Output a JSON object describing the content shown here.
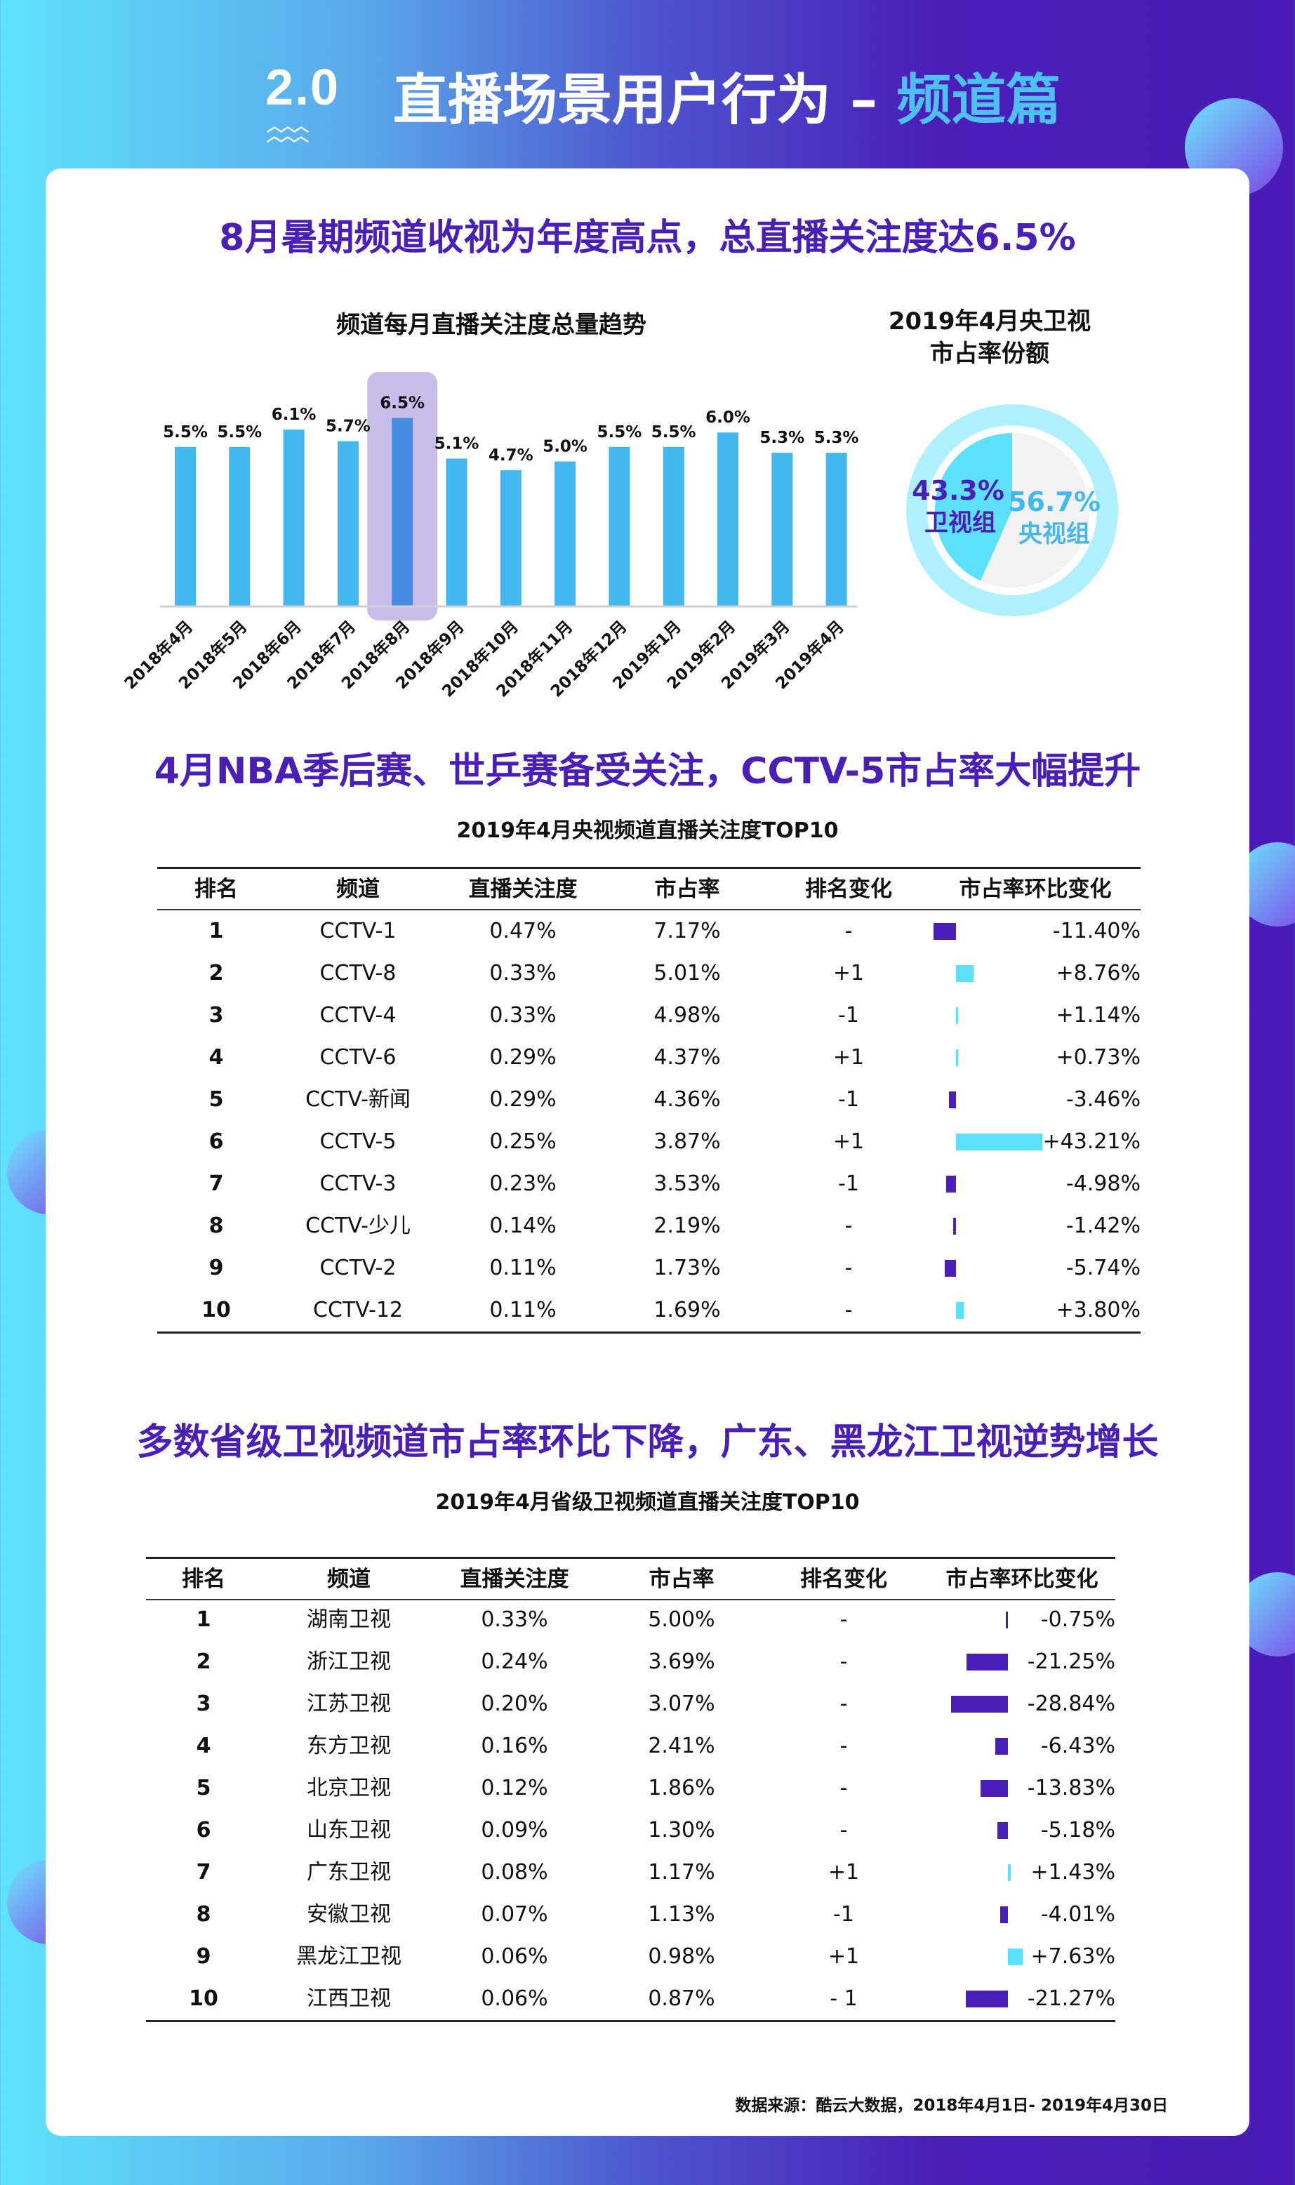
{
  "header": {
    "logo_number": "2.0",
    "title": "直播场景用户行为 – ",
    "title_highlight": "频道篇"
  },
  "section1": {
    "heading": "8月暑期频道收视为年度高点，总直播关注度达6.5%",
    "bar_chart_title": "频道每月直播关注度总量趋势",
    "pie_title_line1": "2019年4月央卫视",
    "pie_title_line2": "市占率份额"
  },
  "chart_data": [
    {
      "type": "bar",
      "title": "频道每月直播关注度总量趋势",
      "categories": [
        "2018年4月",
        "2018年5月",
        "2018年6月",
        "2018年7月",
        "2018年8月",
        "2018年9月",
        "2018年10月",
        "2018年11月",
        "2018年12月",
        "2019年1月",
        "2019年2月",
        "2019年3月",
        "2019年4月"
      ],
      "values": [
        5.5,
        5.5,
        6.1,
        5.7,
        6.5,
        5.1,
        4.7,
        5.0,
        5.5,
        5.5,
        6.0,
        5.3,
        5.3
      ],
      "labels": [
        "5.5%",
        "5.5%",
        "6.1%",
        "5.7%",
        "6.5%",
        "5.1%",
        "4.7%",
        "5.0%",
        "5.5%",
        "5.5%",
        "6.0%",
        "5.3%",
        "5.3%"
      ],
      "highlight_index": 4,
      "colors": {
        "bar": "#42b8ee",
        "highlight_bar": "#468ce0",
        "highlight_bg": "#c8bce9"
      },
      "grid": false
    },
    {
      "type": "pie",
      "title": "2019年4月央卫视市占率份额",
      "slices": [
        {
          "name": "卫视组",
          "value": 43.3,
          "label": "43.3%",
          "color": "#5ce0fc",
          "text_color": "#4a1fb8"
        },
        {
          "name": "央视组",
          "value": 56.7,
          "label": "56.7%",
          "color": "#f2f2f2",
          "text_color": "#42b8ee"
        }
      ],
      "ring_color": "#aef0fd"
    }
  ],
  "section2": {
    "heading": "4月NBA季后赛、世乒赛备受关注，CCTV-5市占率大幅提升",
    "table_title": "2019年4月央视频道直播关注度TOP10",
    "columns": [
      "排名",
      "频道",
      "直播关注度",
      "市占率",
      "排名变化",
      "市占率环比变化"
    ],
    "rows": [
      {
        "rank": "1",
        "channel": "CCTV-1",
        "attention": "0.47%",
        "share": "7.17%",
        "rank_change": "-",
        "share_change": "-11.40%",
        "v": -11.4
      },
      {
        "rank": "2",
        "channel": "CCTV-8",
        "attention": "0.33%",
        "share": "5.01%",
        "rank_change": "+1",
        "share_change": "+8.76%",
        "v": 8.76
      },
      {
        "rank": "3",
        "channel": "CCTV-4",
        "attention": "0.33%",
        "share": "4.98%",
        "rank_change": "-1",
        "share_change": "+1.14%",
        "v": 1.14
      },
      {
        "rank": "4",
        "channel": "CCTV-6",
        "attention": "0.29%",
        "share": "4.37%",
        "rank_change": "+1",
        "share_change": "+0.73%",
        "v": 0.73
      },
      {
        "rank": "5",
        "channel": "CCTV-新闻",
        "attention": "0.29%",
        "share": "4.36%",
        "rank_change": "-1",
        "share_change": "-3.46%",
        "v": -3.46
      },
      {
        "rank": "6",
        "channel": "CCTV-5",
        "attention": "0.25%",
        "share": "3.87%",
        "rank_change": "+1",
        "share_change": "+43.21%",
        "v": 43.21
      },
      {
        "rank": "7",
        "channel": "CCTV-3",
        "attention": "0.23%",
        "share": "3.53%",
        "rank_change": "-1",
        "share_change": "-4.98%",
        "v": -4.98
      },
      {
        "rank": "8",
        "channel": "CCTV-少儿",
        "attention": "0.14%",
        "share": "2.19%",
        "rank_change": "-",
        "share_change": "-1.42%",
        "v": -1.42
      },
      {
        "rank": "9",
        "channel": "CCTV-2",
        "attention": "0.11%",
        "share": "1.73%",
        "rank_change": "-",
        "share_change": "-5.74%",
        "v": -5.74
      },
      {
        "rank": "10",
        "channel": "CCTV-12",
        "attention": "0.11%",
        "share": "1.69%",
        "rank_change": "-",
        "share_change": "+3.80%",
        "v": 3.8
      }
    ]
  },
  "section3": {
    "heading": "多数省级卫视频道市占率环比下降，广东、黑龙江卫视逆势增长",
    "table_title": "2019年4月省级卫视频道直播关注度TOP10",
    "columns": [
      "排名",
      "频道",
      "直播关注度",
      "市占率",
      "排名变化",
      "市占率环比变化"
    ],
    "rows": [
      {
        "rank": "1",
        "channel": "湖南卫视",
        "attention": "0.33%",
        "share": "5.00%",
        "rank_change": "-",
        "share_change": "-0.75%",
        "v": -0.75
      },
      {
        "rank": "2",
        "channel": "浙江卫视",
        "attention": "0.24%",
        "share": "3.69%",
        "rank_change": "-",
        "share_change": "-21.25%",
        "v": -21.25
      },
      {
        "rank": "3",
        "channel": "江苏卫视",
        "attention": "0.20%",
        "share": "3.07%",
        "rank_change": "-",
        "share_change": "-28.84%",
        "v": -28.84
      },
      {
        "rank": "4",
        "channel": "东方卫视",
        "attention": "0.16%",
        "share": "2.41%",
        "rank_change": "-",
        "share_change": "-6.43%",
        "v": -6.43
      },
      {
        "rank": "5",
        "channel": "北京卫视",
        "attention": "0.12%",
        "share": "1.86%",
        "rank_change": "-",
        "share_change": "-13.83%",
        "v": -13.83
      },
      {
        "rank": "6",
        "channel": "山东卫视",
        "attention": "0.09%",
        "share": "1.30%",
        "rank_change": "-",
        "share_change": "-5.18%",
        "v": -5.18
      },
      {
        "rank": "7",
        "channel": "广东卫视",
        "attention": "0.08%",
        "share": "1.17%",
        "rank_change": "+1",
        "share_change": "+1.43%",
        "v": 1.43
      },
      {
        "rank": "8",
        "channel": "安徽卫视",
        "attention": "0.07%",
        "share": "1.13%",
        "rank_change": "-1",
        "share_change": "-4.01%",
        "v": -4.01
      },
      {
        "rank": "9",
        "channel": "黑龙江卫视",
        "attention": "0.06%",
        "share": "0.98%",
        "rank_change": "+1",
        "share_change": "+7.63%",
        "v": 7.63
      },
      {
        "rank": "10",
        "channel": "江西卫视",
        "attention": "0.06%",
        "share": "0.87%",
        "rank_change": "- 1",
        "share_change": "-21.27%",
        "v": -21.27
      }
    ]
  },
  "colors": {
    "positive": "#5ce0fc",
    "negative": "#4a1fb8",
    "heading": "#4a1fb8"
  },
  "source": "数据来源：酷云大数据，2018年4月1日- 2019年4月30日"
}
